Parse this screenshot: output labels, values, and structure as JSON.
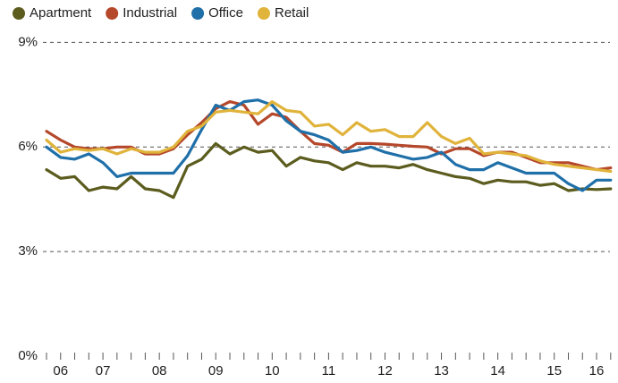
{
  "chart_data": {
    "type": "line",
    "categories": [
      null,
      "06",
      null,
      null,
      "07",
      null,
      null,
      null,
      "08",
      null,
      null,
      null,
      "09",
      null,
      null,
      null,
      "10",
      null,
      null,
      null,
      "11",
      null,
      null,
      null,
      "12",
      null,
      null,
      null,
      "13",
      null,
      null,
      null,
      "14",
      null,
      null,
      null,
      "15",
      null,
      null,
      "16",
      null
    ],
    "series": [
      {
        "name": "Apartment",
        "color": "#5b5c1e",
        "values": [
          5.35,
          5.1,
          5.15,
          4.75,
          4.85,
          4.8,
          5.15,
          4.8,
          4.75,
          4.55,
          5.45,
          5.65,
          6.1,
          5.8,
          6.0,
          5.85,
          5.9,
          5.45,
          5.7,
          5.6,
          5.55,
          5.35,
          5.55,
          5.45,
          5.45,
          5.4,
          5.5,
          5.35,
          5.25,
          5.15,
          5.1,
          4.95,
          5.05,
          5.0,
          5.0,
          4.9,
          4.95,
          4.75,
          4.8,
          4.78,
          4.8
        ]
      },
      {
        "name": "Industrial",
        "color": "#b5482b",
        "values": [
          6.45,
          6.2,
          6.0,
          5.95,
          5.95,
          6.0,
          6.0,
          5.8,
          5.8,
          5.95,
          6.35,
          6.7,
          7.1,
          7.3,
          7.2,
          6.65,
          6.95,
          6.85,
          6.45,
          6.1,
          6.05,
          5.85,
          6.1,
          6.1,
          6.08,
          6.05,
          6.02,
          6.0,
          5.8,
          5.95,
          5.95,
          5.75,
          5.85,
          5.85,
          5.7,
          5.55,
          5.55,
          5.55,
          5.45,
          5.35,
          5.4
        ]
      },
      {
        "name": "Office",
        "color": "#1f6fa9",
        "values": [
          6.0,
          5.7,
          5.65,
          5.8,
          5.55,
          5.15,
          5.25,
          5.25,
          5.25,
          5.25,
          5.75,
          6.5,
          7.2,
          7.05,
          7.3,
          7.35,
          7.2,
          6.75,
          6.45,
          6.35,
          6.2,
          5.85,
          5.9,
          6.0,
          5.85,
          5.75,
          5.65,
          5.7,
          5.85,
          5.5,
          5.35,
          5.35,
          5.55,
          5.4,
          5.25,
          5.25,
          5.25,
          4.95,
          4.75,
          5.05,
          5.05
        ]
      },
      {
        "name": "Retail",
        "color": "#e0b33b",
        "values": [
          6.2,
          5.85,
          5.95,
          5.9,
          5.95,
          5.8,
          5.95,
          5.85,
          5.85,
          6.0,
          6.45,
          6.6,
          7.0,
          7.05,
          7.0,
          6.95,
          7.3,
          7.05,
          7.0,
          6.6,
          6.65,
          6.35,
          6.7,
          6.45,
          6.5,
          6.3,
          6.3,
          6.7,
          6.3,
          6.1,
          6.25,
          5.8,
          5.85,
          5.8,
          5.75,
          5.6,
          5.5,
          5.45,
          5.4,
          5.35,
          5.3
        ]
      }
    ],
    "ylim": [
      0,
      9.3
    ],
    "yticks": [
      {
        "value": 0,
        "label": "0%"
      },
      {
        "value": 3,
        "label": "3%"
      },
      {
        "value": 6,
        "label": "6%"
      },
      {
        "value": 9,
        "label": "9%"
      }
    ],
    "grid": true,
    "legend": "top"
  }
}
